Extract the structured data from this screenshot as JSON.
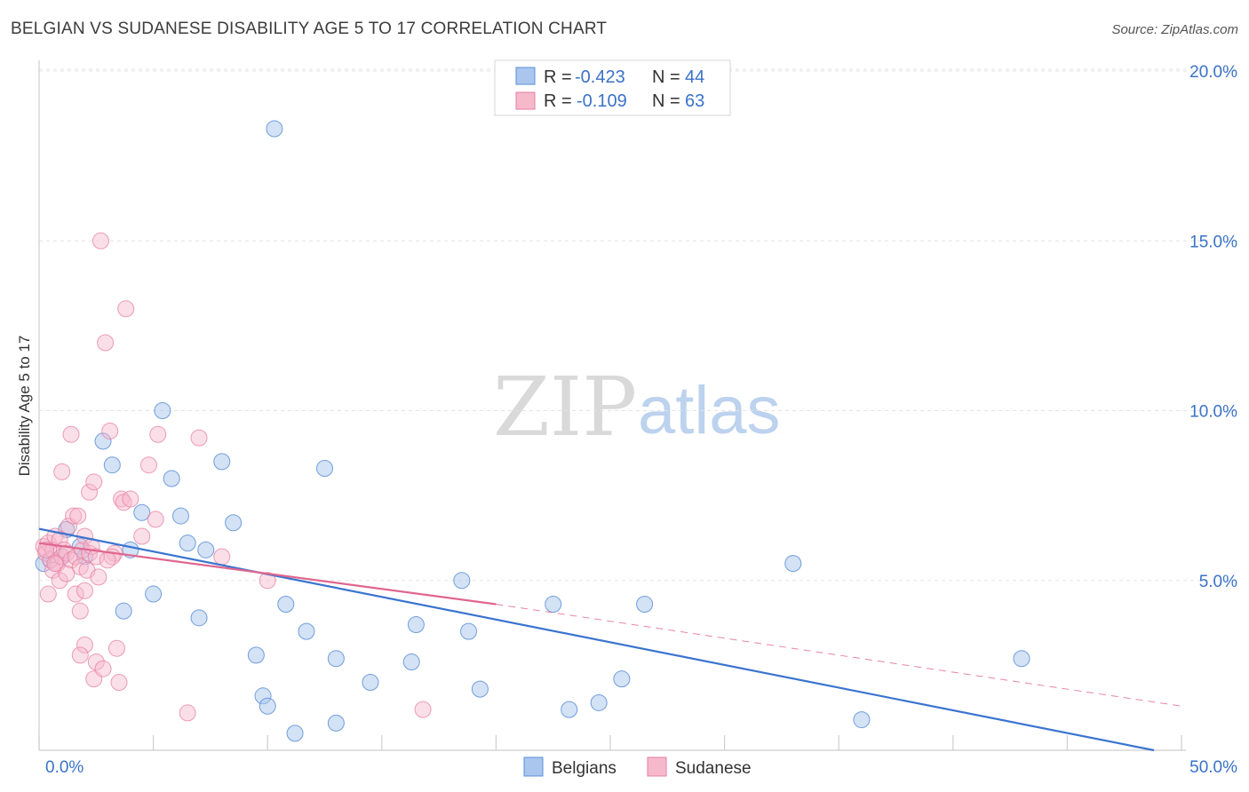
{
  "title": "BELGIAN VS SUDANESE DISABILITY AGE 5 TO 17 CORRELATION CHART",
  "source": "Source: ZipAtlas.com",
  "watermark": {
    "zip": "ZIP",
    "atlas": "atlas"
  },
  "colors": {
    "belgians_fill": "#aac6ee",
    "belgians_stroke": "#5b8fd6",
    "belgians_line": "#3a74cf",
    "sudanese_fill": "#f6b9cc",
    "sudanese_stroke": "#e57ea0",
    "sudanese_line": "#e0668f",
    "tick_text": "#3a72c8"
  },
  "legend": {
    "belgians": {
      "r_label": "R =",
      "r_value": "-0.423",
      "n_label": "N =",
      "n_value": "44"
    },
    "sudanese": {
      "r_label": "R =",
      "r_value": "-0.109",
      "n_label": "N =",
      "n_value": "63"
    }
  },
  "chart_data": {
    "type": "scatter",
    "title": "BELGIAN VS SUDANESE DISABILITY AGE 5 TO 17 CORRELATION CHART",
    "xlabel": "",
    "ylabel": "Disability Age 5 to 17",
    "xlim": [
      0,
      50
    ],
    "ylim": [
      0,
      20
    ],
    "x_tick_labels": [
      "0.0%",
      "50.0%"
    ],
    "y_ticks": [
      5,
      10,
      15,
      20
    ],
    "y_tick_labels": [
      "5.0%",
      "10.0%",
      "15.0%",
      "20.0%"
    ],
    "grid": "horizontal dashed",
    "legend_position": "top-center",
    "series": [
      {
        "name": "Belgians",
        "points": [
          [
            0.2,
            5.5
          ],
          [
            1.0,
            5.7
          ],
          [
            1.2,
            6.5
          ],
          [
            1.8,
            6.0
          ],
          [
            2.0,
            5.7
          ],
          [
            2.8,
            9.1
          ],
          [
            3.2,
            8.4
          ],
          [
            3.7,
            4.1
          ],
          [
            4.0,
            5.9
          ],
          [
            4.5,
            7.0
          ],
          [
            5.0,
            4.6
          ],
          [
            5.4,
            10.0
          ],
          [
            5.8,
            8.0
          ],
          [
            6.2,
            6.9
          ],
          [
            6.5,
            6.1
          ],
          [
            7.0,
            3.9
          ],
          [
            7.3,
            5.9
          ],
          [
            8.0,
            8.5
          ],
          [
            8.5,
            6.7
          ],
          [
            9.5,
            2.8
          ],
          [
            9.8,
            1.6
          ],
          [
            10.0,
            1.3
          ],
          [
            10.3,
            18.3
          ],
          [
            10.8,
            4.3
          ],
          [
            11.2,
            0.5
          ],
          [
            11.7,
            3.5
          ],
          [
            12.5,
            8.3
          ],
          [
            13.0,
            2.7
          ],
          [
            13.0,
            0.8
          ],
          [
            14.5,
            2.0
          ],
          [
            16.3,
            2.6
          ],
          [
            16.5,
            3.7
          ],
          [
            18.5,
            5.0
          ],
          [
            18.8,
            3.5
          ],
          [
            19.3,
            1.8
          ],
          [
            22.5,
            4.3
          ],
          [
            23.2,
            1.2
          ],
          [
            24.5,
            1.4
          ],
          [
            25.5,
            2.1
          ],
          [
            26.5,
            4.3
          ],
          [
            33.0,
            5.5
          ],
          [
            36.0,
            0.9
          ],
          [
            43.0,
            2.7
          ],
          [
            0.5,
            5.6
          ]
        ],
        "trend": {
          "x": [
            0,
            48.8
          ],
          "y": [
            6.52,
            0.0
          ]
        }
      },
      {
        "name": "Sudanese",
        "points": [
          [
            0.2,
            6.0
          ],
          [
            0.3,
            5.8
          ],
          [
            0.4,
            6.1
          ],
          [
            0.5,
            5.6
          ],
          [
            0.6,
            5.9
          ],
          [
            0.7,
            6.3
          ],
          [
            0.8,
            5.5
          ],
          [
            0.9,
            6.2
          ],
          [
            1.0,
            5.7
          ],
          [
            1.1,
            5.9
          ],
          [
            1.2,
            5.8
          ],
          [
            1.3,
            6.6
          ],
          [
            1.4,
            5.6
          ],
          [
            1.5,
            6.9
          ],
          [
            1.6,
            5.7
          ],
          [
            1.7,
            6.9
          ],
          [
            1.8,
            5.4
          ],
          [
            1.9,
            5.9
          ],
          [
            2.0,
            6.3
          ],
          [
            2.1,
            5.3
          ],
          [
            2.2,
            5.8
          ],
          [
            2.3,
            6.0
          ],
          [
            2.5,
            5.7
          ],
          [
            0.3,
            5.9
          ],
          [
            0.6,
            5.3
          ],
          [
            0.9,
            5.0
          ],
          [
            1.0,
            8.2
          ],
          [
            1.4,
            9.3
          ],
          [
            1.6,
            4.6
          ],
          [
            1.8,
            4.1
          ],
          [
            2.0,
            3.1
          ],
          [
            1.8,
            2.8
          ],
          [
            2.0,
            4.7
          ],
          [
            2.2,
            7.6
          ],
          [
            2.4,
            7.9
          ],
          [
            2.7,
            15.0
          ],
          [
            2.9,
            12.0
          ],
          [
            3.1,
            9.4
          ],
          [
            2.5,
            2.6
          ],
          [
            2.4,
            2.1
          ],
          [
            2.8,
            2.4
          ],
          [
            3.3,
            5.8
          ],
          [
            3.4,
            3.0
          ],
          [
            3.5,
            2.0
          ],
          [
            3.8,
            13.0
          ],
          [
            3.6,
            7.4
          ],
          [
            3.7,
            7.3
          ],
          [
            4.0,
            7.4
          ],
          [
            3.2,
            5.7
          ],
          [
            4.5,
            6.3
          ],
          [
            4.8,
            8.4
          ],
          [
            5.1,
            6.8
          ],
          [
            5.2,
            9.3
          ],
          [
            6.5,
            1.1
          ],
          [
            7.0,
            9.2
          ],
          [
            8.0,
            5.7
          ],
          [
            10.0,
            5.0
          ],
          [
            16.8,
            1.2
          ],
          [
            0.4,
            4.6
          ],
          [
            0.7,
            5.5
          ],
          [
            1.2,
            5.2
          ],
          [
            2.6,
            5.1
          ],
          [
            3.0,
            5.6
          ]
        ],
        "trend": {
          "x": [
            0,
            20
          ],
          "y": [
            6.1,
            4.3
          ]
        },
        "trend_extension": {
          "x": [
            20,
            50
          ],
          "y": [
            4.3,
            1.3
          ]
        }
      }
    ]
  },
  "bottom_legend": {
    "belgians": "Belgians",
    "sudanese": "Sudanese"
  }
}
